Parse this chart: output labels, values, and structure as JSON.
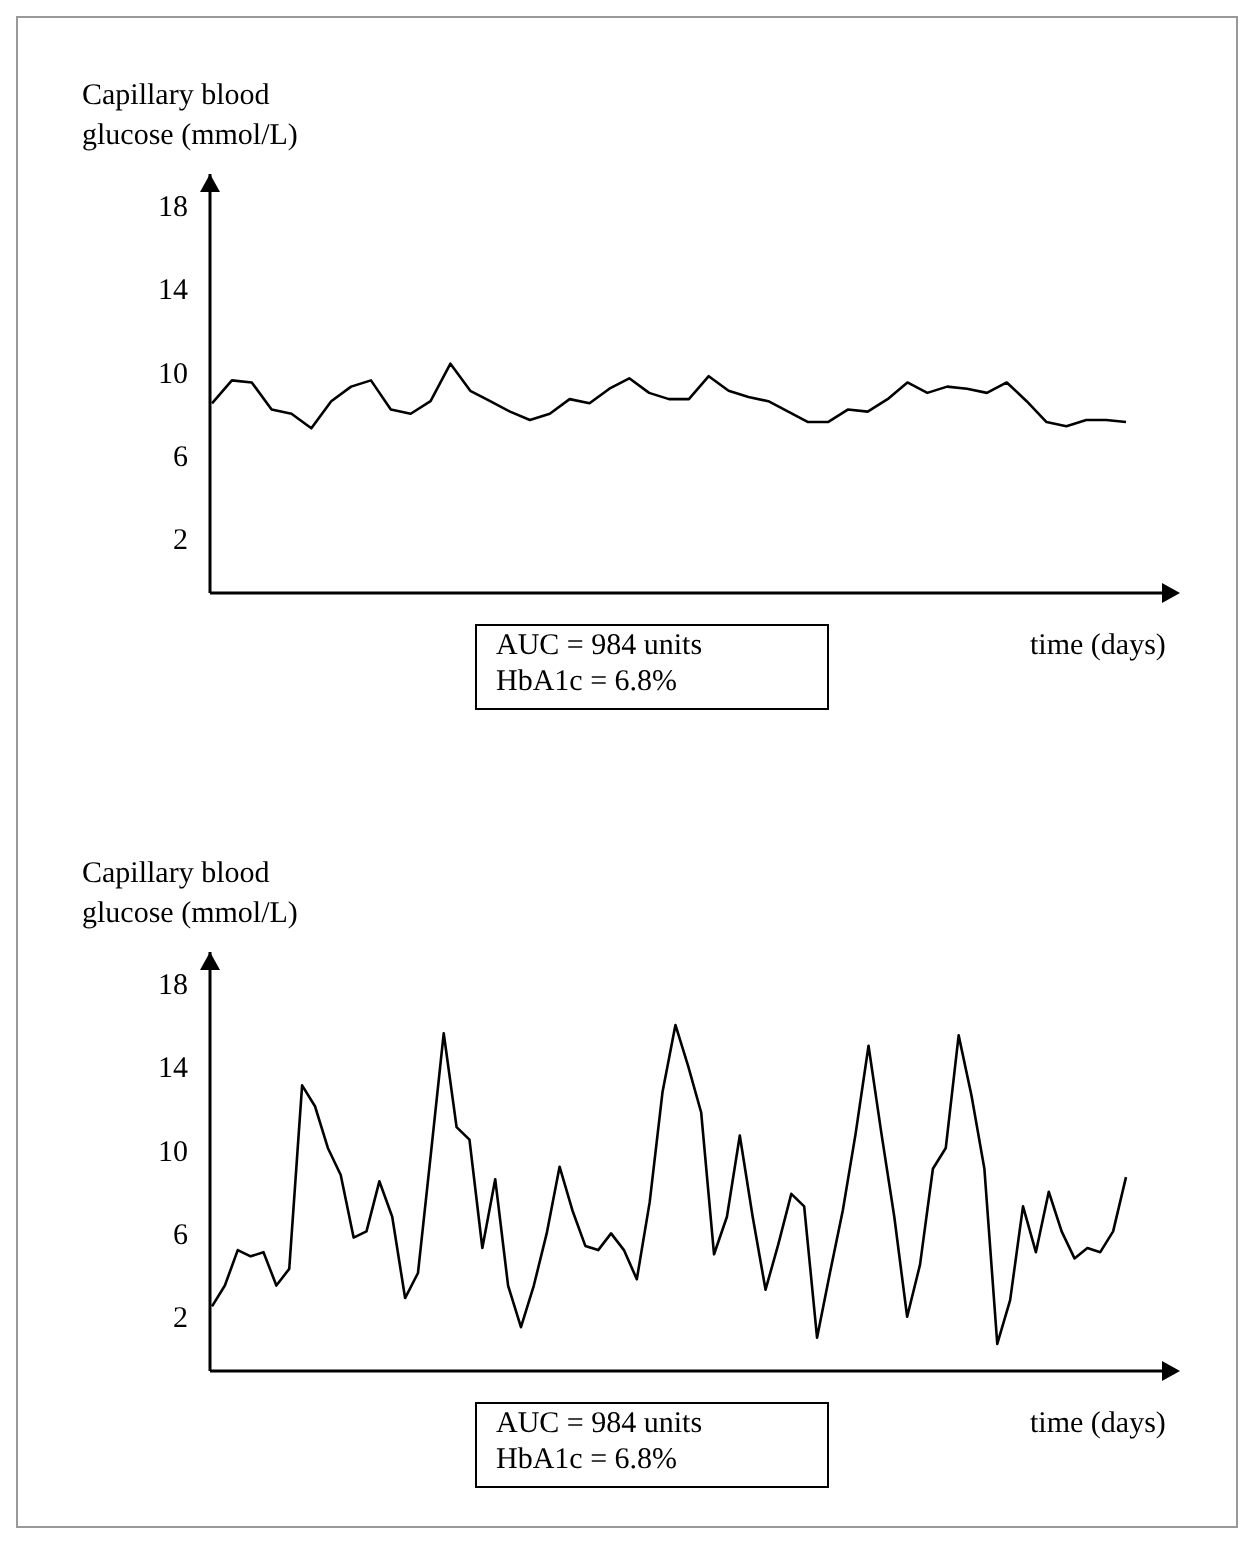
{
  "chart_data": [
    {
      "type": "line",
      "ylabel": "Capillary blood glucose (mmol/L)",
      "xlabel": "time (days)",
      "annotations": [
        "AUC = 984 units",
        "HbA1c = 6.8%"
      ],
      "ylim": [
        -0.6,
        19.5
      ],
      "yticks": [
        2,
        6,
        10,
        14,
        18
      ],
      "categories": [
        null,
        null,
        null,
        null,
        null,
        null,
        null,
        null,
        null,
        null,
        null,
        null,
        null,
        null,
        null,
        null,
        null,
        null,
        null,
        null,
        null,
        null,
        null,
        null,
        null,
        null,
        null,
        null,
        null,
        null,
        null,
        null,
        null,
        null,
        null,
        null,
        null,
        null,
        null,
        null,
        null,
        null,
        null,
        null,
        null,
        null,
        null
      ],
      "series": [
        {
          "color": "#000000",
          "values": [
            8.5,
            9.6,
            9.5,
            8.2,
            8.0,
            7.3,
            8.6,
            9.3,
            9.6,
            8.2,
            8.0,
            8.6,
            10.4,
            9.1,
            8.6,
            8.1,
            7.7,
            8.0,
            8.7,
            8.5,
            9.2,
            9.7,
            9.0,
            8.7,
            8.7,
            9.8,
            9.1,
            8.8,
            8.6,
            8.1,
            7.6,
            7.6,
            8.2,
            8.1,
            8.7,
            9.5,
            9.0,
            9.3,
            9.2,
            9.0,
            9.5,
            8.6,
            7.6,
            7.4,
            7.7,
            7.7,
            7.6
          ]
        }
      ]
    },
    {
      "type": "line",
      "ylabel": "Capillary blood glucose (mmol/L)",
      "xlabel": "time (days)",
      "annotations": [
        "AUC = 984 units",
        "HbA1c = 6.8%"
      ],
      "ylim": [
        -0.6,
        19.5
      ],
      "yticks": [
        2,
        6,
        10,
        14,
        18
      ],
      "categories": [
        null,
        null,
        null,
        null,
        null,
        null,
        null,
        null,
        null,
        null,
        null,
        null,
        null,
        null,
        null,
        null,
        null,
        null,
        null,
        null,
        null,
        null,
        null,
        null,
        null,
        null,
        null,
        null,
        null,
        null,
        null,
        null,
        null,
        null,
        null,
        null,
        null,
        null,
        null,
        null,
        null,
        null,
        null,
        null,
        null,
        null,
        null,
        null,
        null,
        null,
        null,
        null,
        null,
        null,
        null,
        null,
        null,
        null,
        null,
        null,
        null,
        null,
        null,
        null,
        null,
        null,
        null,
        null,
        null,
        null,
        null,
        null
      ],
      "series": [
        {
          "color": "#000000",
          "values": [
            2.5,
            3.5,
            5.2,
            4.9,
            5.1,
            3.5,
            4.3,
            13.1,
            12.1,
            10.1,
            8.8,
            5.8,
            6.1,
            8.5,
            6.8,
            2.9,
            4.1,
            9.8,
            15.6,
            11.1,
            10.5,
            5.3,
            8.6,
            3.5,
            1.5,
            3.5,
            6.0,
            9.2,
            7.1,
            5.4,
            5.2,
            6.0,
            5.2,
            3.8,
            7.5,
            12.8,
            16.0,
            14.0,
            11.8,
            5.0,
            6.8,
            10.7,
            6.8,
            3.3,
            5.5,
            7.9,
            7.3,
            1.0,
            4.1,
            7.1,
            10.8,
            15.0,
            10.8,
            6.8,
            2.0,
            4.5,
            9.1,
            10.1,
            15.5,
            12.6,
            9.1,
            0.7,
            2.8,
            7.3,
            5.1,
            8.0,
            6.1,
            4.8,
            5.3,
            5.1,
            6.1,
            8.7
          ]
        }
      ]
    }
  ]
}
